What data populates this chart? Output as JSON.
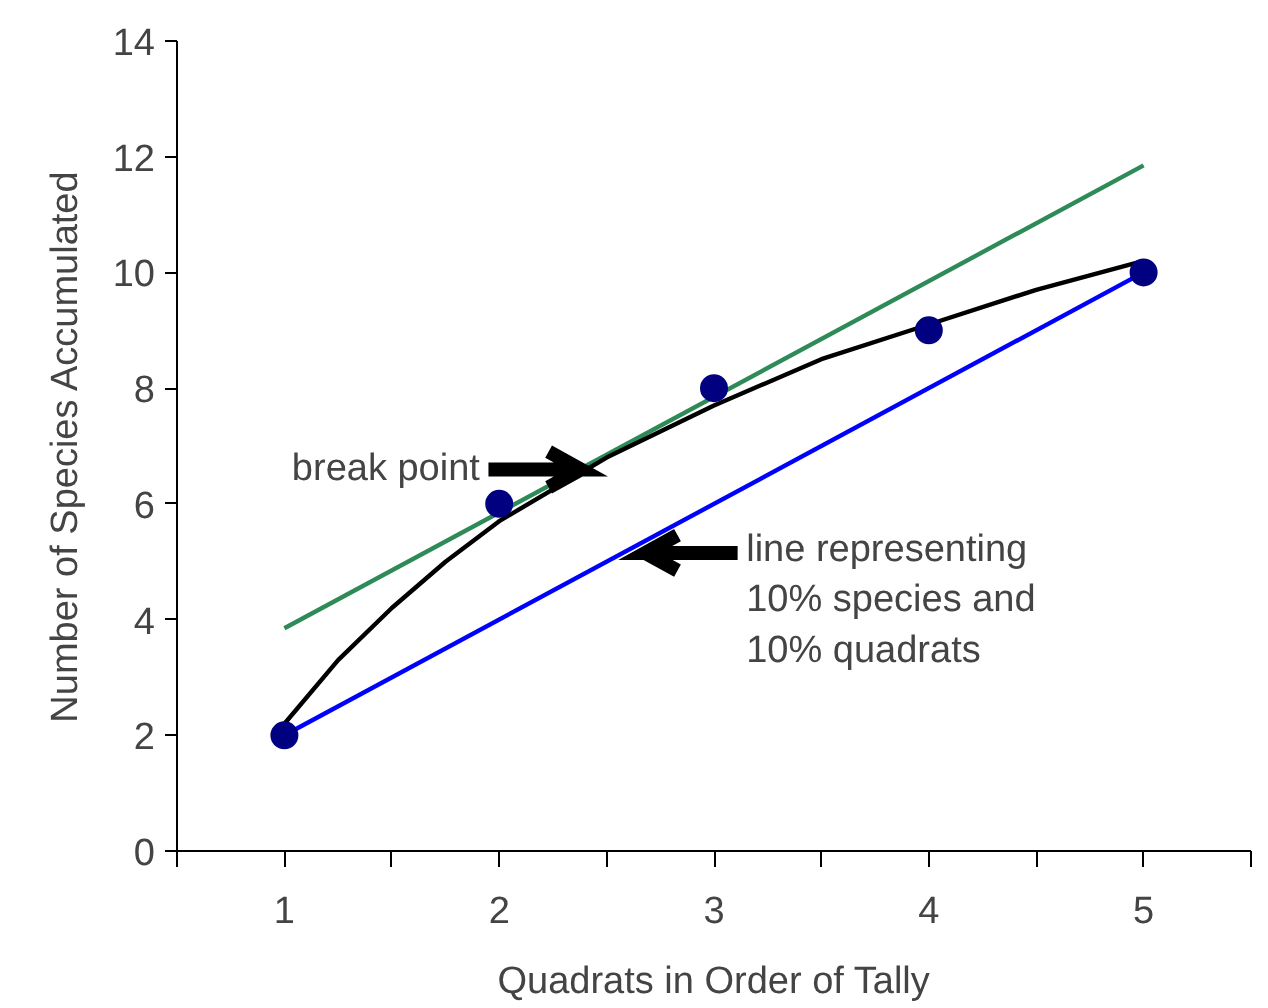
{
  "chart_data": {
    "type": "scatter",
    "xlabel": "Quadrats in Order of Tally",
    "ylabel": "Number of Species Accumulated",
    "x": [
      1,
      2,
      3,
      4,
      5
    ],
    "xlim": [
      0.5,
      5.5
    ],
    "xticks": [
      {
        "value": 0.5,
        "label": null
      },
      1,
      {
        "value": 1.5,
        "label": null
      },
      2,
      {
        "value": 2.5,
        "label": null
      },
      3,
      {
        "value": 3.5,
        "label": null
      },
      4,
      {
        "value": 4.5,
        "label": null
      },
      5,
      {
        "value": 5.5,
        "label": null
      }
    ],
    "ylim": [
      0,
      14
    ],
    "yticks": [
      0,
      2,
      4,
      6,
      8,
      10,
      12,
      14
    ],
    "grid": false,
    "series": [
      {
        "type": "line",
        "color": "#2e8b57",
        "x": [
          1,
          5
        ],
        "values": [
          3.85,
          11.85
        ]
      },
      {
        "type": "line",
        "color": "#0000ff",
        "x": [
          1,
          5
        ],
        "values": [
          2,
          10
        ]
      },
      {
        "type": "line",
        "color": "#000000",
        "x": [
          1,
          1.25,
          1.5,
          1.75,
          2,
          2.5,
          3,
          3.5,
          4,
          4.5,
          5
        ],
        "values": [
          2.2,
          3.3,
          4.2,
          5.0,
          5.7,
          6.8,
          7.7,
          8.5,
          9.1,
          9.7,
          10.2
        ]
      },
      {
        "color": "#000080",
        "marker": "circle",
        "values": [
          2,
          6,
          8,
          9,
          10
        ]
      }
    ],
    "annotations": [
      "break point",
      "line representing\n10% species and\n10% quadrats"
    ]
  }
}
